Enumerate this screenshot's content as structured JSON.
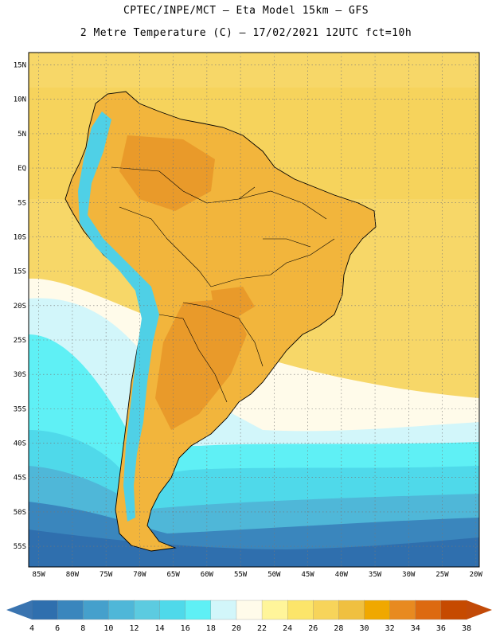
{
  "header": {
    "line1": "CPTEC/INPE/MCT –  Eta Model 15km – GFS",
    "line2": "2 Metre Temperature (C) – 17/02/2021 12UTC fct=10h"
  },
  "axes": {
    "lat_labels": [
      "15N",
      "10N",
      "5N",
      "EQ",
      "5S",
      "10S",
      "15S",
      "20S",
      "25S",
      "30S",
      "35S",
      "40S",
      "45S",
      "50S",
      "55S"
    ],
    "lon_labels": [
      "85W",
      "80W",
      "75W",
      "70W",
      "65W",
      "60W",
      "55W",
      "50W",
      "45W",
      "40W",
      "35W",
      "30W",
      "25W",
      "20W"
    ]
  },
  "colorbar": {
    "labels": [
      "4",
      "6",
      "8",
      "10",
      "12",
      "14",
      "16",
      "18",
      "20",
      "22",
      "24",
      "26",
      "28",
      "30",
      "32",
      "34",
      "36",
      "38"
    ],
    "colors": [
      "#2f6fae",
      "#3a86bd",
      "#45a0cc",
      "#4fb7d8",
      "#5ccbe0",
      "#4fd9ea",
      "#5ff0f5",
      "#d2f6fa",
      "#fffbea",
      "#fff59a",
      "#fce56a",
      "#f7d45a",
      "#f0c040",
      "#f0a800",
      "#e88a20",
      "#dd6a10",
      "#c64a00"
    ],
    "low_color": "#3a74b0",
    "high_color": "#c24a08"
  },
  "map": {
    "ocean_color": "#f7d768",
    "land_color": "#f2b53c",
    "hot_color": "#e99a2a",
    "andes_color": "#4fd0e6",
    "cold_ocean_colors": [
      "#fffbea",
      "#d2f6fa",
      "#5ff0f5",
      "#4fd9ea",
      "#4fb7d8",
      "#3a86bd",
      "#2f6fae"
    ]
  }
}
